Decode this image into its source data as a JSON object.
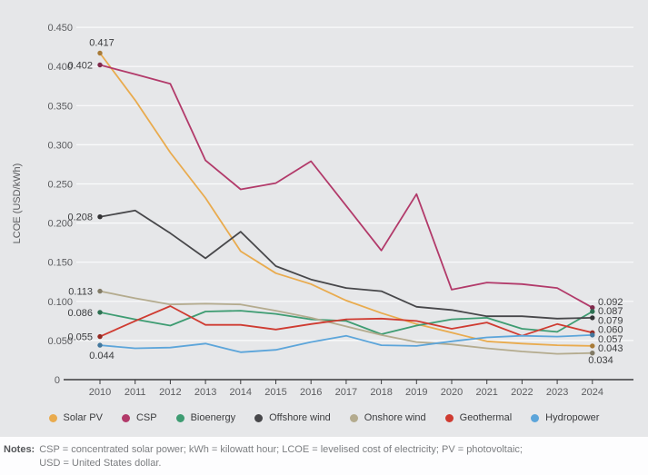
{
  "chart_data": {
    "type": "line",
    "title": "",
    "xlabel": "",
    "ylabel": "LCOE (USD/kWh)",
    "x": [
      2010,
      2011,
      2012,
      2013,
      2014,
      2015,
      2016,
      2017,
      2018,
      2019,
      2020,
      2021,
      2022,
      2023,
      2024
    ],
    "ylim": [
      0,
      0.45
    ],
    "yticks": [
      0.45,
      0.4,
      0.35,
      0.3,
      0.25,
      0.2,
      0.15,
      0.1,
      0.05,
      0
    ],
    "grid": true,
    "legend_position": "bottom",
    "series": [
      {
        "name": "Solar PV",
        "color": "#e9ab4e",
        "values": [
          0.417,
          0.357,
          0.29,
          0.232,
          0.164,
          0.136,
          0.122,
          0.101,
          0.085,
          0.071,
          0.06,
          0.049,
          0.046,
          0.044,
          0.043
        ]
      },
      {
        "name": "CSP",
        "color": "#b23a6a",
        "values": [
          0.402,
          0.39,
          0.378,
          0.28,
          0.243,
          0.251,
          0.279,
          0.222,
          0.165,
          0.237,
          0.115,
          0.124,
          0.122,
          0.117,
          0.092
        ]
      },
      {
        "name": "Bioenergy",
        "color": "#3e9c72",
        "values": [
          0.086,
          0.077,
          0.069,
          0.087,
          0.088,
          0.084,
          0.077,
          0.075,
          0.058,
          0.069,
          0.077,
          0.079,
          0.065,
          0.061,
          0.087
        ]
      },
      {
        "name": "Offshore wind",
        "color": "#47474a",
        "values": [
          0.208,
          0.216,
          0.187,
          0.155,
          0.189,
          0.145,
          0.128,
          0.117,
          0.113,
          0.093,
          0.089,
          0.081,
          0.081,
          0.078,
          0.079
        ]
      },
      {
        "name": "Onshore wind",
        "color": "#b4ab8e",
        "values": [
          0.113,
          0.104,
          0.096,
          0.097,
          0.096,
          0.088,
          0.079,
          0.068,
          0.057,
          0.048,
          0.045,
          0.04,
          0.036,
          0.033,
          0.034
        ]
      },
      {
        "name": "Geothermal",
        "color": "#cf3b31",
        "values": [
          0.055,
          0.075,
          0.094,
          0.07,
          0.07,
          0.064,
          0.071,
          0.077,
          0.078,
          0.075,
          0.065,
          0.073,
          0.056,
          0.071,
          0.06
        ]
      },
      {
        "name": "Hydropower",
        "color": "#5ca5da",
        "values": [
          0.044,
          0.04,
          0.041,
          0.046,
          0.035,
          0.038,
          0.048,
          0.056,
          0.044,
          0.043,
          0.049,
          0.054,
          0.056,
          0.055,
          0.057
        ]
      }
    ],
    "start_labels": [
      "0.417",
      "0.402",
      "0.086",
      "0.208",
      "0.113",
      "0.055",
      "0.044"
    ],
    "end_labels": [
      "0.043",
      "0.092",
      "0.087",
      "0.079",
      "0.034",
      "0.060",
      "0.057"
    ]
  },
  "notes": {
    "label": "Notes:",
    "line1": "CSP = concentrated solar power; kWh = kilowatt hour; LCOE = levelised cost of electricity; PV = photovoltaic;",
    "line2": "USD = United States dollar."
  },
  "colors": {
    "plot_background": "#e6e7e9",
    "gridline": "#fafbfc",
    "axis": "#3b3c3e",
    "tick_text": "#5b5c5f",
    "data_label_text": "#3b3c3e"
  }
}
